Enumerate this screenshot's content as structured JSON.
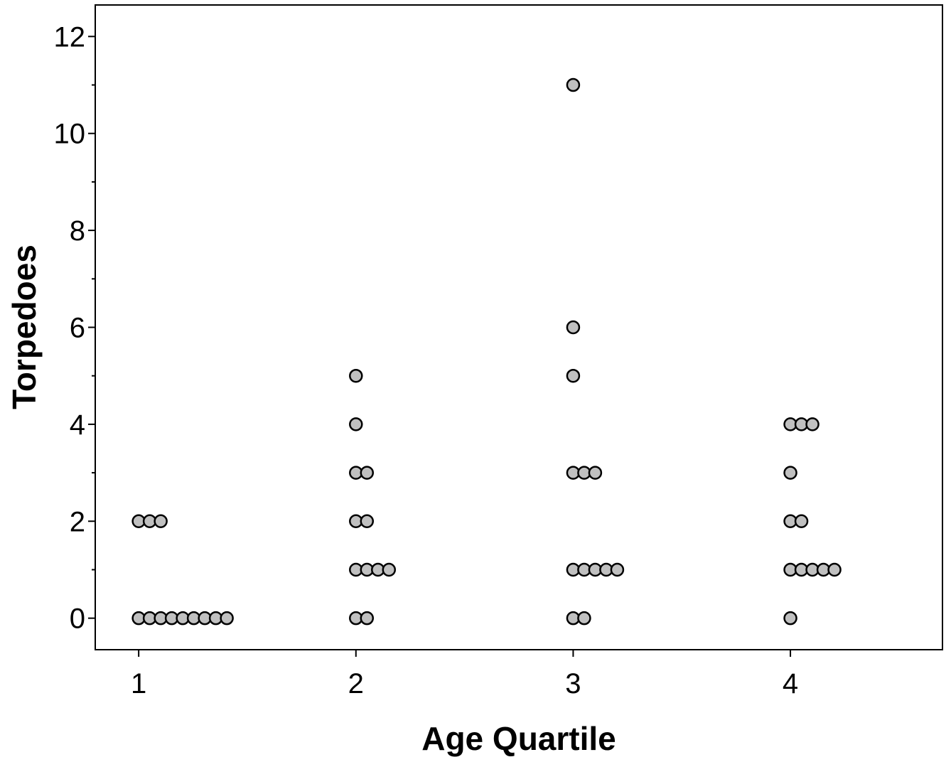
{
  "chart_data": {
    "type": "scatter",
    "title": "",
    "xlabel": "Age Quartile",
    "ylabel": "Torpedoes",
    "xlim": [
      0.8,
      4.7
    ],
    "ylim": [
      -0.65,
      12.65
    ],
    "x_ticks": [
      1,
      2,
      3,
      4
    ],
    "x_tick_labels": [
      "1",
      "2",
      "3",
      "4"
    ],
    "y_ticks": [
      0,
      2,
      4,
      6,
      8,
      10,
      12
    ],
    "y_tick_labels": [
      "0",
      "2",
      "4",
      "6",
      "8",
      "10",
      "12"
    ],
    "y_minor_ticks": [
      1,
      3,
      5,
      7,
      9,
      11
    ],
    "grid": false,
    "legend": "none",
    "marker_fill": "#c0c0c0",
    "marker_edge": "#000000",
    "stacking": "dot plot (repeated values stacked horizontally to the right)",
    "series": [
      {
        "values_by_category": [
          {
            "x": 1,
            "y": [
              2,
              2,
              2,
              0,
              0,
              0,
              0,
              0,
              0,
              0,
              0,
              0
            ]
          },
          {
            "x": 2,
            "y": [
              5,
              4,
              3,
              3,
              2,
              2,
              1,
              1,
              1,
              1,
              0,
              0
            ]
          },
          {
            "x": 3,
            "y": [
              11,
              6,
              5,
              3,
              3,
              3,
              1,
              1,
              1,
              1,
              1,
              0,
              0
            ]
          },
          {
            "x": 4,
            "y": [
              4,
              4,
              4,
              3,
              2,
              2,
              1,
              1,
              1,
              1,
              1,
              0
            ]
          }
        ]
      }
    ]
  }
}
